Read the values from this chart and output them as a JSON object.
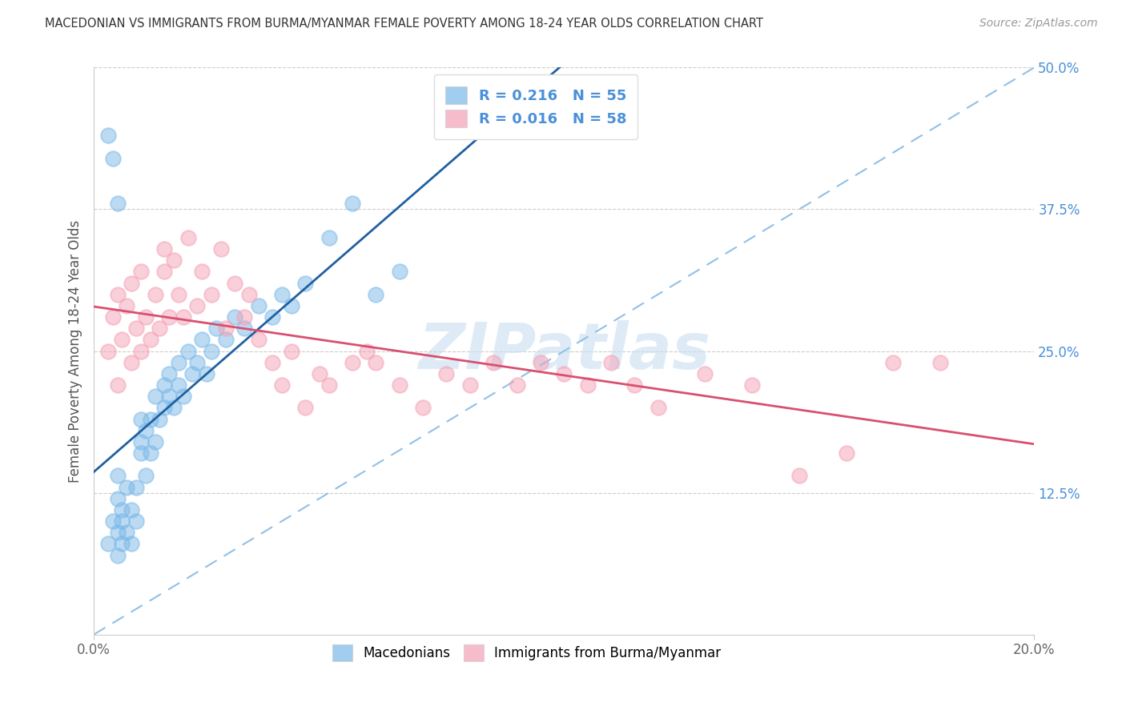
{
  "title": "MACEDONIAN VS IMMIGRANTS FROM BURMA/MYANMAR FEMALE POVERTY AMONG 18-24 YEAR OLDS CORRELATION CHART",
  "source": "Source: ZipAtlas.com",
  "ylabel": "Female Poverty Among 18-24 Year Olds",
  "xlim": [
    0.0,
    0.2
  ],
  "ylim": [
    0.0,
    0.5
  ],
  "macedonian_color": "#7ab8e8",
  "burma_color": "#f4a0b5",
  "macedonian_R": 0.216,
  "macedonian_N": 55,
  "burma_R": 0.016,
  "burma_N": 58,
  "blue_line_color": "#2060a0",
  "pink_line_color": "#d85070",
  "diagonal_line_color": "#90c0e8",
  "watermark_color": "#c8dff0",
  "mac_x": [
    0.003,
    0.004,
    0.005,
    0.005,
    0.005,
    0.005,
    0.006,
    0.006,
    0.006,
    0.007,
    0.007,
    0.008,
    0.008,
    0.009,
    0.009,
    0.01,
    0.01,
    0.01,
    0.011,
    0.011,
    0.012,
    0.012,
    0.013,
    0.013,
    0.014,
    0.015,
    0.015,
    0.016,
    0.016,
    0.017,
    0.018,
    0.018,
    0.019,
    0.02,
    0.021,
    0.022,
    0.023,
    0.024,
    0.025,
    0.026,
    0.028,
    0.03,
    0.032,
    0.035,
    0.038,
    0.04,
    0.042,
    0.045,
    0.05,
    0.055,
    0.003,
    0.004,
    0.005,
    0.06,
    0.065
  ],
  "mac_y": [
    0.08,
    0.1,
    0.07,
    0.09,
    0.12,
    0.14,
    0.08,
    0.1,
    0.11,
    0.09,
    0.13,
    0.08,
    0.11,
    0.1,
    0.13,
    0.16,
    0.17,
    0.19,
    0.14,
    0.18,
    0.16,
    0.19,
    0.17,
    0.21,
    0.19,
    0.2,
    0.22,
    0.21,
    0.23,
    0.2,
    0.22,
    0.24,
    0.21,
    0.25,
    0.23,
    0.24,
    0.26,
    0.23,
    0.25,
    0.27,
    0.26,
    0.28,
    0.27,
    0.29,
    0.28,
    0.3,
    0.29,
    0.31,
    0.35,
    0.38,
    0.44,
    0.42,
    0.38,
    0.3,
    0.32
  ],
  "bur_x": [
    0.003,
    0.004,
    0.005,
    0.005,
    0.006,
    0.007,
    0.008,
    0.008,
    0.009,
    0.01,
    0.01,
    0.011,
    0.012,
    0.013,
    0.014,
    0.015,
    0.015,
    0.016,
    0.017,
    0.018,
    0.019,
    0.02,
    0.022,
    0.023,
    0.025,
    0.027,
    0.028,
    0.03,
    0.032,
    0.033,
    0.035,
    0.038,
    0.04,
    0.042,
    0.045,
    0.048,
    0.05,
    0.055,
    0.058,
    0.06,
    0.065,
    0.07,
    0.075,
    0.08,
    0.085,
    0.09,
    0.095,
    0.1,
    0.105,
    0.11,
    0.115,
    0.12,
    0.13,
    0.14,
    0.15,
    0.16,
    0.17,
    0.18
  ],
  "bur_y": [
    0.25,
    0.28,
    0.22,
    0.3,
    0.26,
    0.29,
    0.24,
    0.31,
    0.27,
    0.25,
    0.32,
    0.28,
    0.26,
    0.3,
    0.27,
    0.32,
    0.34,
    0.28,
    0.33,
    0.3,
    0.28,
    0.35,
    0.29,
    0.32,
    0.3,
    0.34,
    0.27,
    0.31,
    0.28,
    0.3,
    0.26,
    0.24,
    0.22,
    0.25,
    0.2,
    0.23,
    0.22,
    0.24,
    0.25,
    0.24,
    0.22,
    0.2,
    0.23,
    0.22,
    0.24,
    0.22,
    0.24,
    0.23,
    0.22,
    0.24,
    0.22,
    0.2,
    0.23,
    0.22,
    0.14,
    0.16,
    0.24,
    0.24
  ]
}
